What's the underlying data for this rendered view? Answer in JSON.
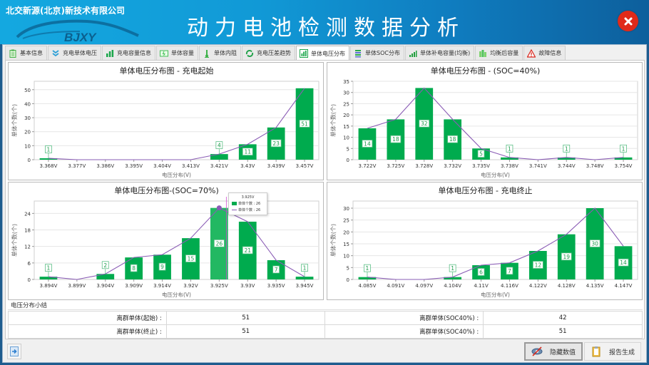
{
  "header": {
    "company": "北交新源(北京)新技术有限公司",
    "logo_text": "BJXY",
    "title": "动力电池检测数据分析",
    "close_icon": "close-icon"
  },
  "tabs": [
    {
      "label": "基本信息",
      "icon": "clipboard-icon",
      "active": false
    },
    {
      "label": "充电单体电压",
      "icon": "double-chevron-down-icon",
      "active": false
    },
    {
      "label": "充电容量信息",
      "icon": "bar-chart-icon",
      "active": false
    },
    {
      "label": "单体容量",
      "icon": "battery-icon",
      "active": false
    },
    {
      "label": "单体内阻",
      "icon": "thermometer-icon",
      "active": false
    },
    {
      "label": "充电压差趋势",
      "icon": "refresh-icon",
      "active": false
    },
    {
      "label": "单体电压分布",
      "icon": "bar-chart-icon",
      "active": true
    },
    {
      "label": "单体SOC分布",
      "icon": "stacked-bars-icon",
      "active": false
    },
    {
      "label": "单体补电容量(均衡)",
      "icon": "rising-bars-icon",
      "active": false
    },
    {
      "label": "均衡后容量",
      "icon": "bars-icon",
      "active": false
    },
    {
      "label": "故障信息",
      "icon": "warning-icon",
      "active": false
    }
  ],
  "colors": {
    "bar": "#00ab4e",
    "line": "#8a5cb5",
    "label_border": "#5cbf86",
    "header_start": "#14a8e0",
    "header_end": "#0d5f9c",
    "close": "#e02a1a"
  },
  "chart_data": [
    {
      "type": "bar",
      "title": "单体电压分布图 - 充电起始",
      "xlabel": "电压分布(V)",
      "ylabel": "单体个数(个)",
      "categories": [
        "3.368V",
        "3.377V",
        "3.386V",
        "3.395V",
        "3.404V",
        "3.413V",
        "3.421V",
        "3.43V",
        "3.439V",
        "3.457V"
      ],
      "values": [
        1,
        0,
        0,
        0,
        0,
        0,
        4,
        11,
        23,
        51
      ],
      "yticks": [
        0,
        10,
        20,
        30,
        40,
        50
      ],
      "ylim": [
        0,
        56
      ],
      "overlay_line": true
    },
    {
      "type": "bar",
      "title": "单体电压分布图 - (SOC=40%)",
      "xlabel": "电压分布(V)",
      "ylabel": "单体个数(个)",
      "categories": [
        "3.722V",
        "3.725V",
        "3.728V",
        "3.732V",
        "3.735V",
        "3.738V",
        "3.741V",
        "3.744V",
        "3.748V",
        "3.754V"
      ],
      "values": [
        14,
        18,
        32,
        18,
        5,
        1,
        0,
        1,
        0,
        1
      ],
      "yticks": [
        0,
        5,
        10,
        15,
        20,
        25,
        30,
        35
      ],
      "ylim": [
        0,
        35
      ],
      "overlay_line": true
    },
    {
      "type": "bar",
      "title": "单体电压分布图-(SOC=70%)",
      "xlabel": "电压分布(V)",
      "ylabel": "单体个数(个)",
      "categories": [
        "3.894V",
        "3.899V",
        "3.904V",
        "3.909V",
        "3.914V",
        "3.92V",
        "3.925V",
        "3.93V",
        "3.935V",
        "3.945V"
      ],
      "values": [
        1,
        0,
        2,
        8,
        9,
        15,
        26,
        21,
        7,
        1
      ],
      "yticks": [
        0,
        6,
        12,
        18,
        24
      ],
      "ylim": [
        0,
        28.5
      ],
      "overlay_line": true,
      "tooltip": {
        "category": "3.925V",
        "bar_entry": "单体个数 : 26",
        "line_entry": "单体个数 : 26"
      }
    },
    {
      "type": "bar",
      "title": "单体电压分布图 - 充电终止",
      "xlabel": "电压分布(V)",
      "ylabel": "单体个数(个)",
      "categories": [
        "4.085V",
        "4.091V",
        "4.097V",
        "4.104V",
        "4.11V",
        "4.116V",
        "4.122V",
        "4.128V",
        "4.135V",
        "4.147V"
      ],
      "values": [
        1,
        0,
        0,
        1,
        6,
        7,
        12,
        19,
        30,
        14
      ],
      "yticks": [
        0,
        5,
        10,
        15,
        20,
        25,
        30
      ],
      "ylim": [
        0,
        33
      ],
      "overlay_line": true
    }
  ],
  "summary": {
    "title": "电压分布小结",
    "rows": [
      [
        {
          "label": "离群单体(起始) :",
          "value": "51"
        },
        {
          "label": "离群单体(SOC40%) :",
          "value": "42"
        }
      ],
      [
        {
          "label": "离群单体(终止) :",
          "value": "51"
        },
        {
          "label": "离群单体(SOC40%) :",
          "value": "51"
        }
      ]
    ]
  },
  "footer": {
    "export_icon": "export-arrow-icon",
    "hide_values_label": "隐藏数值",
    "report_label": "报告生成"
  }
}
